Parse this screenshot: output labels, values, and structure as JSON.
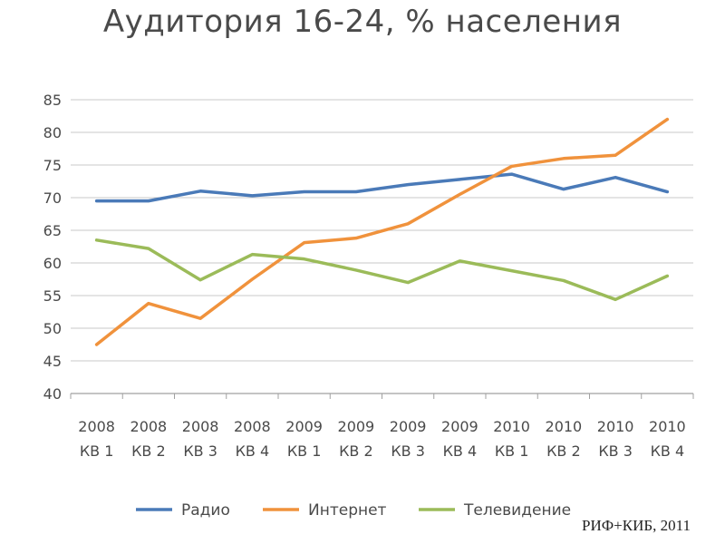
{
  "chart_data": {
    "type": "line",
    "title": "Аудитория 16-24, % населения",
    "xlabel": "",
    "ylabel": "",
    "ylim": [
      40,
      85
    ],
    "yticks": [
      40,
      45,
      50,
      55,
      60,
      65,
      70,
      75,
      80,
      85
    ],
    "grid": true,
    "legend_position": "bottom",
    "categories": [
      [
        "2008",
        "КВ 1"
      ],
      [
        "2008",
        "КВ 2"
      ],
      [
        "2008",
        "КВ 3"
      ],
      [
        "2008",
        "КВ 4"
      ],
      [
        "2009",
        "КВ 1"
      ],
      [
        "2009",
        "КВ 2"
      ],
      [
        "2009",
        "КВ 3"
      ],
      [
        "2009",
        "КВ 4"
      ],
      [
        "2010",
        "КВ 1"
      ],
      [
        "2010",
        "КВ 2"
      ],
      [
        "2010",
        "КВ 3"
      ],
      [
        "2010",
        "КВ 4"
      ]
    ],
    "series": [
      {
        "name": "Радио",
        "color": "#4a7ab8",
        "values": [
          69.5,
          69.5,
          71.0,
          70.3,
          70.9,
          70.9,
          72.0,
          72.8,
          73.6,
          71.3,
          73.1,
          70.9
        ]
      },
      {
        "name": "Интернет",
        "color": "#f0923c",
        "values": [
          47.5,
          53.8,
          51.5,
          57.5,
          63.1,
          63.8,
          66.0,
          70.5,
          74.8,
          76.0,
          76.5,
          82.0
        ]
      },
      {
        "name": "Телевидение",
        "color": "#9bbb59",
        "values": [
          63.5,
          62.2,
          57.4,
          61.3,
          60.6,
          58.9,
          57.0,
          60.3,
          58.8,
          57.3,
          54.4,
          58.0
        ]
      }
    ]
  },
  "source": "РИФ+КИБ, 2011"
}
